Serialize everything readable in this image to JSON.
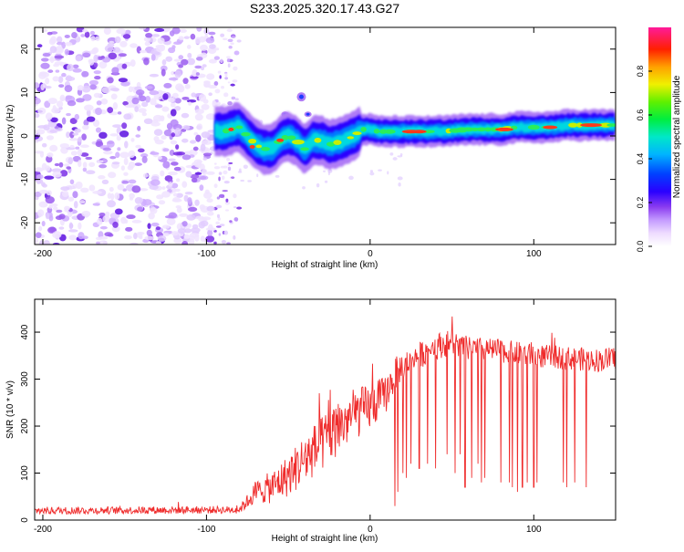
{
  "title": "S233.2025.320.17.43.G27",
  "chart_data": [
    {
      "type": "heatmap",
      "xlabel": "Height of straight line (km)",
      "ylabel": "Frequency (Hz)",
      "xlim": [
        -205,
        150
      ],
      "ylim": [
        -25,
        25
      ],
      "xticks": [
        -200,
        -100,
        0,
        100
      ],
      "yticks": [
        -20,
        -10,
        0,
        10,
        20
      ],
      "trace": {
        "x": [
          -95,
          -90,
          -85,
          -80,
          -75,
          -70,
          -65,
          -60,
          -55,
          -50,
          -45,
          -40,
          -35,
          -30,
          -25,
          -20,
          -15,
          -10,
          -5,
          0,
          5,
          10,
          20,
          30,
          40,
          50,
          60,
          70,
          80,
          90,
          100,
          110,
          120,
          130,
          140,
          150
        ],
        "y": [
          1,
          1,
          1.5,
          2,
          0,
          -2,
          -3,
          -3,
          -1,
          0,
          -1,
          -3,
          -1,
          -1,
          -2,
          -1.5,
          -1,
          0,
          1.5,
          1.5,
          1,
          1,
          1,
          1,
          1,
          1.2,
          1.5,
          1.5,
          1.5,
          2,
          2,
          2,
          2.5,
          2.5,
          2.5,
          2.5
        ]
      },
      "colorbar": {
        "label": "Normalized spectral amplitude",
        "ticks": [
          "0.0",
          "0.2",
          "0.4",
          "0.6",
          "0.8"
        ],
        "range": [
          0,
          1
        ]
      }
    },
    {
      "type": "line",
      "xlabel": "Height of straight line (km)",
      "ylabel": "SNR (10 * v/v)",
      "xlim": [
        -205,
        150
      ],
      "ylim": [
        0,
        470
      ],
      "xticks": [
        -200,
        -100,
        0,
        100
      ],
      "yticks": [
        0,
        100,
        200,
        300,
        400
      ],
      "color": "#ef2b2b",
      "envelope": {
        "x": [
          -205,
          -80,
          -75,
          -70,
          -60,
          -50,
          -40,
          -30,
          -20,
          -10,
          0,
          10,
          15,
          20,
          30,
          40,
          50,
          60,
          80,
          100,
          120,
          140,
          150
        ],
        "mean": [
          20,
          22,
          40,
          60,
          70,
          95,
          130,
          160,
          195,
          225,
          240,
          270,
          310,
          330,
          350,
          370,
          378,
          365,
          360,
          350,
          345,
          340,
          345
        ],
        "amp": [
          8,
          8,
          15,
          25,
          35,
          45,
          55,
          60,
          60,
          55,
          50,
          40,
          35,
          30,
          28,
          28,
          28,
          25,
          25,
          25,
          25,
          25,
          25
        ]
      },
      "dropouts": [
        {
          "x": 15,
          "y": 30
        },
        {
          "x": 17,
          "y": 60
        },
        {
          "x": 20,
          "y": 100
        },
        {
          "x": 22,
          "y": 90
        },
        {
          "x": 25,
          "y": 120
        },
        {
          "x": 30,
          "y": 110
        },
        {
          "x": 35,
          "y": 120
        },
        {
          "x": 40,
          "y": 110
        },
        {
          "x": 47,
          "y": 140
        },
        {
          "x": 52,
          "y": 100
        },
        {
          "x": 55,
          "y": 140
        },
        {
          "x": 58,
          "y": 70
        },
        {
          "x": 62,
          "y": 90
        },
        {
          "x": 66,
          "y": 120
        },
        {
          "x": 68,
          "y": 80
        },
        {
          "x": 70,
          "y": 90
        },
        {
          "x": 80,
          "y": 80
        },
        {
          "x": 85,
          "y": 80
        },
        {
          "x": 87,
          "y": 70
        },
        {
          "x": 90,
          "y": 60
        },
        {
          "x": 93,
          "y": 70
        },
        {
          "x": 96,
          "y": 80
        },
        {
          "x": 100,
          "y": 70
        },
        {
          "x": 102,
          "y": 80
        },
        {
          "x": 118,
          "y": 80
        },
        {
          "x": 120,
          "y": 70
        },
        {
          "x": 125,
          "y": 80
        },
        {
          "x": 132,
          "y": 70
        }
      ]
    }
  ]
}
